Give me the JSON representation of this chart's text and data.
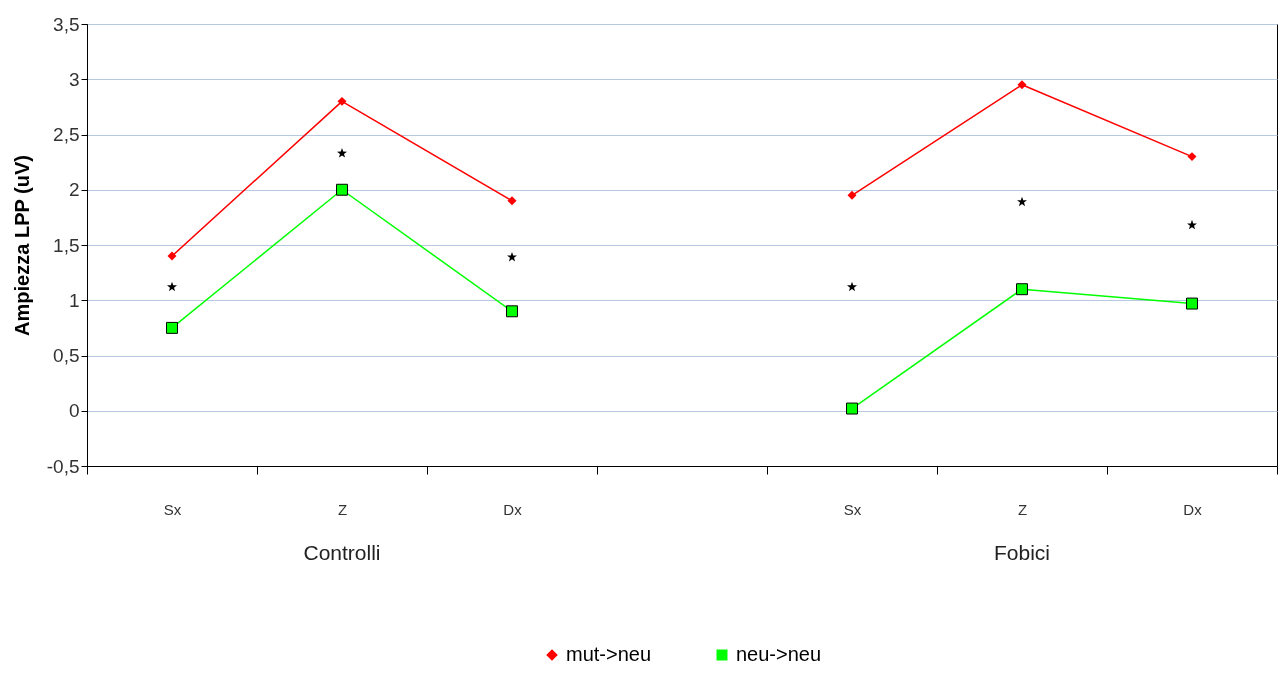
{
  "chart_data": {
    "type": "line",
    "ylabel": "Ampiezza LPP (uV)",
    "categories": [
      "Sx",
      "Z",
      "Dx",
      null,
      "Sx",
      "Z",
      "Dx"
    ],
    "series": [
      {
        "name": "mut->neu",
        "color": "#ff0000",
        "marker": "diamond",
        "values": [
          1.4,
          2.8,
          1.9,
          null,
          1.95,
          2.95,
          2.3
        ]
      },
      {
        "name": "neu->neu",
        "color": "#00ff00",
        "marker": "square",
        "values": [
          0.75,
          2.0,
          0.9,
          null,
          0.02,
          1.1,
          0.97
        ]
      },
      {
        "type": "scatter",
        "color": "#000000",
        "marker": "star",
        "values": [
          1.12,
          2.33,
          1.39,
          null,
          1.12,
          1.89,
          1.68
        ]
      }
    ],
    "annotations": [
      "Controlli",
      "Fobici"
    ],
    "ylim": [
      -0.5,
      3.5
    ],
    "yticks": [
      {
        "value": -0.5,
        "label": "-0,5"
      },
      0,
      {
        "value": 0.5,
        "label": "0,5"
      },
      1,
      {
        "value": 1.5,
        "label": "1,5"
      },
      2,
      {
        "value": 2.5,
        "label": "2,5"
      },
      3,
      {
        "value": 3.5,
        "label": "3,5"
      }
    ],
    "grid": "y",
    "legend": "bottom"
  }
}
